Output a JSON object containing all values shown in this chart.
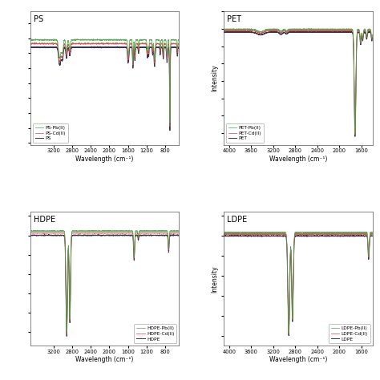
{
  "panels": [
    {
      "title": "PS",
      "xmin": 500,
      "xmax": 3700,
      "xticks": [
        3200,
        2800,
        2400,
        2000,
        1600,
        1200,
        800
      ],
      "xlabel": "Wavelength (cm⁻¹)",
      "legend": [
        "PS",
        "PS-Cd(II)",
        "PS-Pb(II)"
      ],
      "legend_colors": [
        "#222244",
        "#e05050",
        "#44bb44"
      ],
      "legend_loc": "lower left",
      "show_ylabel": false,
      "type": "ps"
    },
    {
      "title": "PET",
      "xmin": 1400,
      "xmax": 4100,
      "xticks": [
        4000,
        3600,
        3200,
        2800,
        2400,
        2000,
        1600
      ],
      "xlabel": "Wavelength (cm⁻¹)",
      "legend": [
        "PET",
        "PET-Cd(II)",
        "PET-Pb(II)"
      ],
      "legend_colors": [
        "#222244",
        "#e05050",
        "#44bb44"
      ],
      "legend_loc": "lower left",
      "show_ylabel": true,
      "type": "pet"
    },
    {
      "title": "HDPE",
      "xmin": 500,
      "xmax": 3700,
      "xticks": [
        3200,
        2800,
        2400,
        2000,
        1600,
        1200,
        800
      ],
      "xlabel": "Wavelength (cm⁻¹)",
      "legend": [
        "HDPE",
        "HDPE-Cd(II)",
        "HDPE-Pb(II)"
      ],
      "legend_colors": [
        "#222244",
        "#e05050",
        "#44bb44"
      ],
      "legend_loc": "lower right",
      "show_ylabel": false,
      "type": "hdpe"
    },
    {
      "title": "LDPE",
      "xmin": 1400,
      "xmax": 4100,
      "xticks": [
        4000,
        3600,
        3200,
        2800,
        2400,
        2000,
        1600
      ],
      "xlabel": "Wavelength (cm⁻¹)",
      "legend": [
        "LDPE",
        "LDPE-Cd(II)",
        "LDPE-Pb(II)"
      ],
      "legend_colors": [
        "#222244",
        "#e05050",
        "#44bb44"
      ],
      "legend_loc": "lower right",
      "show_ylabel": true,
      "type": "ldpe"
    }
  ],
  "fig_bg": "#ffffff",
  "axes_bg": "#ffffff",
  "line_colors": [
    "#222244",
    "#dd4444",
    "#44aa44"
  ]
}
